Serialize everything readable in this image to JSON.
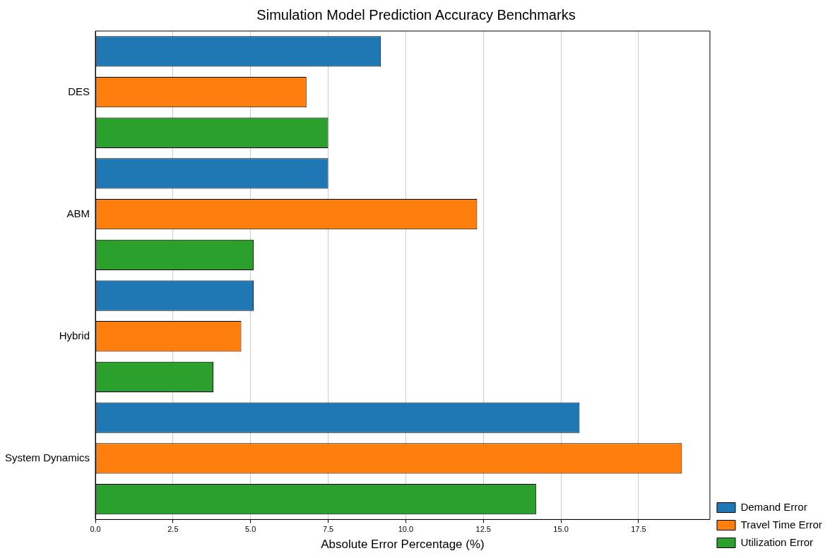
{
  "chart_data": {
    "type": "bar",
    "orientation": "horizontal",
    "title": "Simulation Model Prediction Accuracy Benchmarks",
    "xlabel": "Absolute Error Percentage (%)",
    "categories": [
      "DES",
      "ABM",
      "Hybrid",
      "System Dynamics"
    ],
    "series": [
      {
        "name": "Demand Error",
        "color": "#1f77b4",
        "values": [
          9.2,
          7.5,
          5.1,
          15.6
        ]
      },
      {
        "name": "Travel Time Error",
        "color": "#ff7f0e",
        "values": [
          6.8,
          12.3,
          4.7,
          18.9
        ]
      },
      {
        "name": "Utilization Error",
        "color": "#2ca02c",
        "values": [
          7.5,
          5.1,
          3.8,
          14.2
        ]
      }
    ],
    "xlim": [
      0,
      19.8
    ],
    "xticks": [
      {
        "value": 0,
        "label": "0.0"
      },
      {
        "value": 2.5,
        "label": "2.5"
      },
      {
        "value": 5,
        "label": "5.0"
      },
      {
        "value": 7.5,
        "label": "7.5"
      },
      {
        "value": 10,
        "label": "10.0"
      },
      {
        "value": 12.5,
        "label": "12.5"
      },
      {
        "value": 15,
        "label": "15.0"
      },
      {
        "value": 17.5,
        "label": "17.5"
      }
    ],
    "grid": "x",
    "legend": "bottom right"
  }
}
